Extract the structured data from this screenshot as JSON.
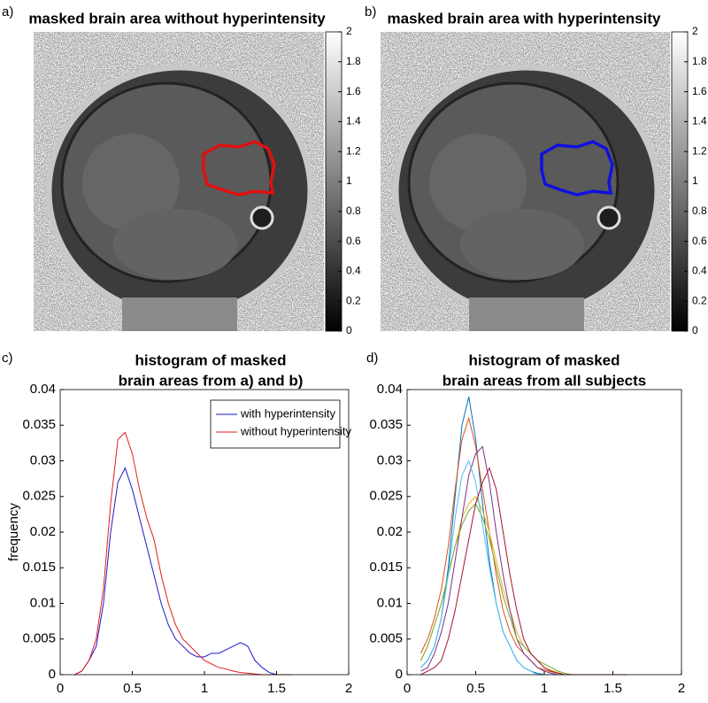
{
  "chart_data": [
    {
      "type": "image",
      "panel": "a)",
      "title": "masked brain area without hyperintensity",
      "contour_color": "#e01010",
      "ylim": [
        0,
        2
      ],
      "yticks": [
        0,
        0.2,
        0.4,
        0.6,
        0.8,
        1,
        1.2,
        1.4,
        1.6,
        1.8,
        2
      ]
    },
    {
      "type": "image",
      "panel": "b)",
      "title": "masked brain area with hyperintensity",
      "contour_color": "#1010e0",
      "ylim": [
        0,
        2
      ],
      "yticks": [
        0,
        0.2,
        0.4,
        0.6,
        0.8,
        1,
        1.2,
        1.4,
        1.6,
        1.8,
        2
      ]
    },
    {
      "type": "line",
      "panel": "c)",
      "title": [
        "histogram of masked",
        "brain areas from a) and b)"
      ],
      "ylabel": "frequency",
      "xlim": [
        0,
        2
      ],
      "xticks": [
        0,
        0.5,
        1,
        1.5,
        2
      ],
      "ylim": [
        0,
        0.04
      ],
      "yticks": [
        0,
        0.005,
        0.01,
        0.015,
        0.02,
        0.025,
        0.03,
        0.035,
        0.04
      ],
      "legend": "upper right",
      "x": [
        0.1,
        0.15,
        0.2,
        0.25,
        0.3,
        0.35,
        0.4,
        0.45,
        0.5,
        0.55,
        0.6,
        0.65,
        0.7,
        0.75,
        0.8,
        0.85,
        0.9,
        0.95,
        1.0,
        1.05,
        1.1,
        1.15,
        1.2,
        1.25,
        1.3,
        1.35,
        1.4,
        1.45,
        1.5,
        1.55,
        1.6
      ],
      "series": [
        {
          "name": "with hyperintensity",
          "color": "#1a1acc",
          "values": [
            0,
            0.0005,
            0.002,
            0.004,
            0.01,
            0.02,
            0.027,
            0.029,
            0.026,
            0.022,
            0.018,
            0.014,
            0.01,
            0.007,
            0.005,
            0.004,
            0.003,
            0.0025,
            0.0025,
            0.003,
            0.003,
            0.0035,
            0.004,
            0.0045,
            0.004,
            0.002,
            0.001,
            0.0003,
            0,
            0,
            0
          ]
        },
        {
          "name": "without hyperintensity",
          "color": "#e61a1a",
          "values": [
            0,
            0.0005,
            0.002,
            0.005,
            0.012,
            0.024,
            0.033,
            0.034,
            0.031,
            0.026,
            0.022,
            0.019,
            0.014,
            0.01,
            0.007,
            0.005,
            0.004,
            0.003,
            0.002,
            0.0015,
            0.001,
            0.0008,
            0.0005,
            0.0003,
            0.0002,
            0.0001,
            0,
            0,
            0,
            0,
            0
          ]
        }
      ]
    },
    {
      "type": "line",
      "panel": "d)",
      "title": [
        "histogram of masked",
        "brain areas from all subjects"
      ],
      "xlim": [
        0,
        2
      ],
      "xticks": [
        0,
        0.5,
        1,
        1.5,
        2
      ],
      "ylim": [
        0,
        0.04
      ],
      "yticks": [
        0,
        0.005,
        0.01,
        0.015,
        0.02,
        0.025,
        0.03,
        0.035,
        0.04
      ],
      "x": [
        0.1,
        0.15,
        0.2,
        0.25,
        0.3,
        0.35,
        0.4,
        0.45,
        0.5,
        0.55,
        0.6,
        0.65,
        0.7,
        0.75,
        0.8,
        0.85,
        0.9,
        0.95,
        1.0,
        1.05,
        1.1,
        1.15,
        1.2,
        1.25,
        1.3,
        1.35,
        1.4,
        1.45,
        1.5,
        1.55,
        1.6
      ],
      "series": [
        {
          "color": "#0072BD",
          "values": [
            0.001,
            0.002,
            0.004,
            0.008,
            0.015,
            0.025,
            0.035,
            0.039,
            0.033,
            0.024,
            0.016,
            0.01,
            0.006,
            0.004,
            0.002,
            0.001,
            0.0005,
            0.0002,
            0,
            0,
            0,
            0,
            0,
            0,
            0,
            0,
            0,
            0,
            0,
            0,
            0
          ]
        },
        {
          "color": "#D95319",
          "values": [
            0.003,
            0.005,
            0.008,
            0.012,
            0.018,
            0.026,
            0.033,
            0.036,
            0.032,
            0.026,
            0.02,
            0.014,
            0.009,
            0.006,
            0.004,
            0.003,
            0.002,
            0.001,
            0.0007,
            0.0004,
            0.0002,
            0,
            0,
            0,
            0,
            0,
            0,
            0,
            0,
            0,
            0
          ]
        },
        {
          "color": "#EDB120",
          "values": [
            0.002,
            0.004,
            0.007,
            0.01,
            0.014,
            0.018,
            0.022,
            0.024,
            0.025,
            0.023,
            0.02,
            0.016,
            0.012,
            0.009,
            0.006,
            0.004,
            0.003,
            0.002,
            0.001,
            0.0006,
            0.0003,
            0,
            0,
            0,
            0,
            0,
            0,
            0,
            0,
            0,
            0
          ]
        },
        {
          "color": "#7E2F8E",
          "values": [
            0.0005,
            0.001,
            0.003,
            0.006,
            0.01,
            0.016,
            0.022,
            0.028,
            0.031,
            0.032,
            0.027,
            0.02,
            0.014,
            0.009,
            0.005,
            0.003,
            0.002,
            0.001,
            0.0005,
            0.0002,
            0,
            0,
            0,
            0,
            0,
            0,
            0,
            0,
            0,
            0,
            0
          ]
        },
        {
          "color": "#77AC30",
          "values": [
            0.002,
            0.004,
            0.007,
            0.01,
            0.014,
            0.018,
            0.021,
            0.023,
            0.024,
            0.022,
            0.019,
            0.015,
            0.011,
            0.008,
            0.005,
            0.004,
            0.003,
            0.002,
            0.0015,
            0.001,
            0.0005,
            0.0002,
            0,
            0,
            0,
            0,
            0,
            0,
            0,
            0,
            0
          ]
        },
        {
          "color": "#4DBEEE",
          "values": [
            0.001,
            0.002,
            0.004,
            0.008,
            0.014,
            0.022,
            0.028,
            0.03,
            0.027,
            0.021,
            0.015,
            0.01,
            0.006,
            0.004,
            0.002,
            0.001,
            0.0005,
            0,
            0,
            0,
            0,
            0,
            0,
            0,
            0,
            0,
            0,
            0,
            0,
            0,
            0
          ]
        },
        {
          "color": "#A2142F",
          "values": [
            0,
            0.0005,
            0.001,
            0.002,
            0.005,
            0.009,
            0.014,
            0.019,
            0.024,
            0.027,
            0.029,
            0.026,
            0.02,
            0.014,
            0.009,
            0.005,
            0.003,
            0.002,
            0.001,
            0.0005,
            0.0002,
            0,
            0,
            0,
            0,
            0,
            0,
            0,
            0,
            0,
            0
          ]
        }
      ]
    }
  ]
}
